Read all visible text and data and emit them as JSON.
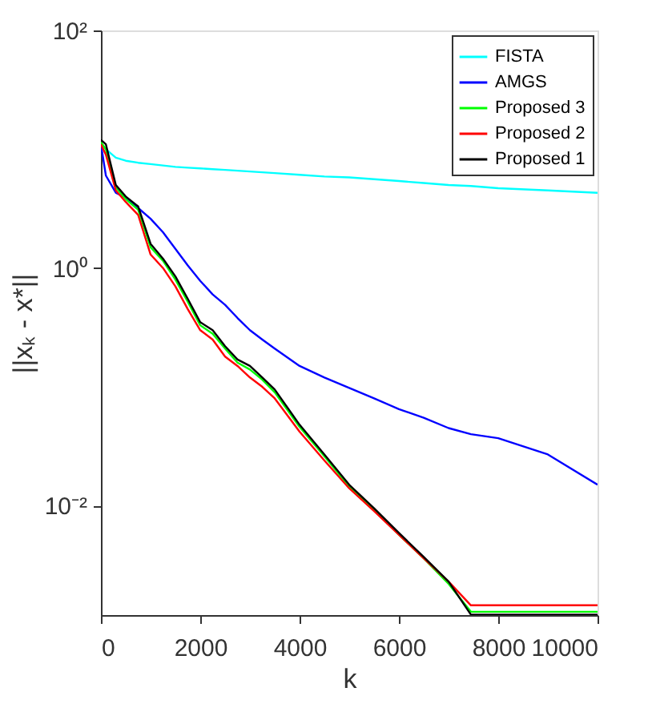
{
  "chart_data": {
    "type": "line",
    "xlabel": "k",
    "ylabel": "||xₖ - x*||",
    "log": "y",
    "grid": false,
    "legend": "top right",
    "line_style": "solid",
    "marker": "none",
    "x": [
      0,
      100,
      300,
      500,
      750,
      1000,
      1250,
      1500,
      1750,
      2000,
      2250,
      2500,
      2750,
      3000,
      3250,
      3500,
      4000,
      4500,
      5000,
      5500,
      6000,
      6500,
      7000,
      7450,
      8000,
      9000,
      10000
    ],
    "xlim": [
      0,
      10000
    ],
    "xticks": [
      0,
      2000,
      4000,
      6000,
      8000,
      10000
    ],
    "ylim": [
      0.0012,
      100
    ],
    "yticks": [
      {
        "value": 0.01,
        "label": "10⁻²"
      },
      {
        "value": 1,
        "label": "10⁰"
      },
      {
        "value": 100,
        "label": "10²"
      }
    ],
    "series": [
      {
        "name": "FISTA",
        "color": "#00ffff",
        "values": [
          11,
          10,
          8.5,
          8,
          7.7,
          7.5,
          7.3,
          7.1,
          7,
          6.9,
          6.8,
          6.7,
          6.6,
          6.5,
          6.4,
          6.3,
          6.1,
          5.9,
          5.8,
          5.6,
          5.4,
          5.2,
          5.0,
          4.9,
          4.7,
          4.5,
          4.3
        ]
      },
      {
        "name": "AMGS",
        "color": "#0000ff",
        "values": [
          11,
          6,
          4.3,
          3.9,
          3.2,
          2.6,
          2.0,
          1.45,
          1.05,
          0.78,
          0.6,
          0.49,
          0.38,
          0.3,
          0.25,
          0.21,
          0.15,
          0.12,
          0.098,
          0.08,
          0.065,
          0.055,
          0.045,
          0.04,
          0.037,
          0.027,
          0.015
        ]
      },
      {
        "name": "Proposed 3",
        "color": "#00ff00",
        "values": [
          11.5,
          10,
          4.8,
          3.8,
          3.1,
          1.5,
          1.15,
          0.8,
          0.52,
          0.33,
          0.28,
          0.21,
          0.16,
          0.14,
          0.115,
          0.09,
          0.046,
          0.026,
          0.0145,
          0.0092,
          0.0057,
          0.0036,
          0.0022,
          0.00128,
          0.00128,
          0.00128,
          0.00128
        ]
      },
      {
        "name": "Proposed 2",
        "color": "#ff0000",
        "values": [
          11,
          9,
          4.5,
          3.6,
          2.8,
          1.3,
          1.0,
          0.7,
          0.45,
          0.3,
          0.25,
          0.18,
          0.15,
          0.12,
          0.1,
          0.08,
          0.042,
          0.024,
          0.014,
          0.009,
          0.0057,
          0.0036,
          0.0023,
          0.00145,
          0.00145,
          0.00145,
          0.00145
        ]
      },
      {
        "name": "Proposed 1",
        "color": "#000000",
        "values": [
          12,
          11,
          5,
          4,
          3.3,
          1.6,
          1.2,
          0.85,
          0.55,
          0.35,
          0.3,
          0.22,
          0.17,
          0.15,
          0.12,
          0.095,
          0.048,
          0.027,
          0.015,
          0.0095,
          0.0059,
          0.0037,
          0.0023,
          0.00121,
          0.00121,
          0.00121,
          0.00121
        ]
      }
    ]
  }
}
